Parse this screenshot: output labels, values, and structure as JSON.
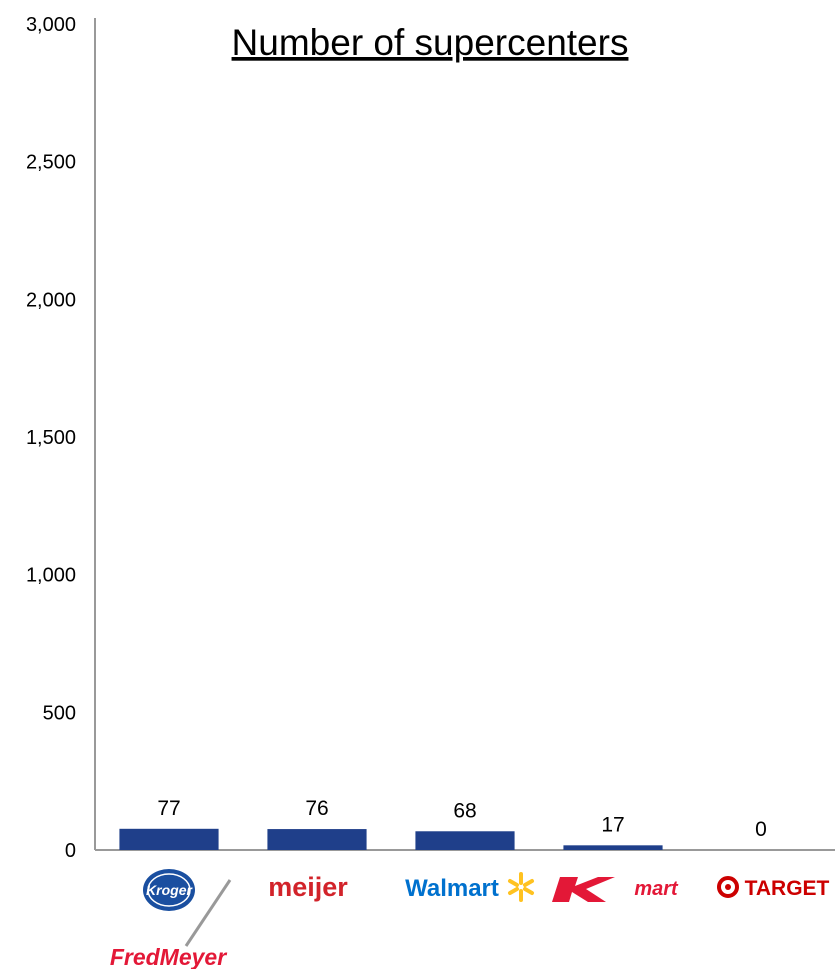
{
  "chart_data": {
    "type": "bar",
    "title": "Number of supercenters",
    "categories": [
      "Kroger / FredMeyer",
      "meijer",
      "Walmart",
      "Kmart",
      "TARGET"
    ],
    "values": [
      77,
      76,
      68,
      17,
      0
    ],
    "data_labels": [
      "77",
      "76",
      "68",
      "17",
      "0"
    ],
    "ylim": [
      0,
      3000
    ],
    "yticks": [
      0,
      500,
      1000,
      1500,
      2000,
      2500,
      3000
    ],
    "ytick_labels": [
      "0",
      "500",
      "1,000",
      "1,500",
      "2,000",
      "2,500",
      "3,000"
    ],
    "xlabel": "",
    "ylabel": "",
    "grid": false,
    "bar_color": "#1f3f8a",
    "axis_color": "#999999"
  },
  "logos": {
    "kroger": {
      "text": "Kroger",
      "color": "#1a4fa0"
    },
    "fredmeyer": {
      "text": "FredMeyer",
      "color": "#e31837"
    },
    "meijer": {
      "text": "meijer",
      "color": "#d2232a"
    },
    "walmart": {
      "text": "Walmart",
      "color": "#0071ce",
      "spark_color": "#ffc220"
    },
    "kmart": {
      "text": "mart",
      "color": "#e31837"
    },
    "target": {
      "text": "TARGET",
      "color": "#cc0000"
    }
  }
}
